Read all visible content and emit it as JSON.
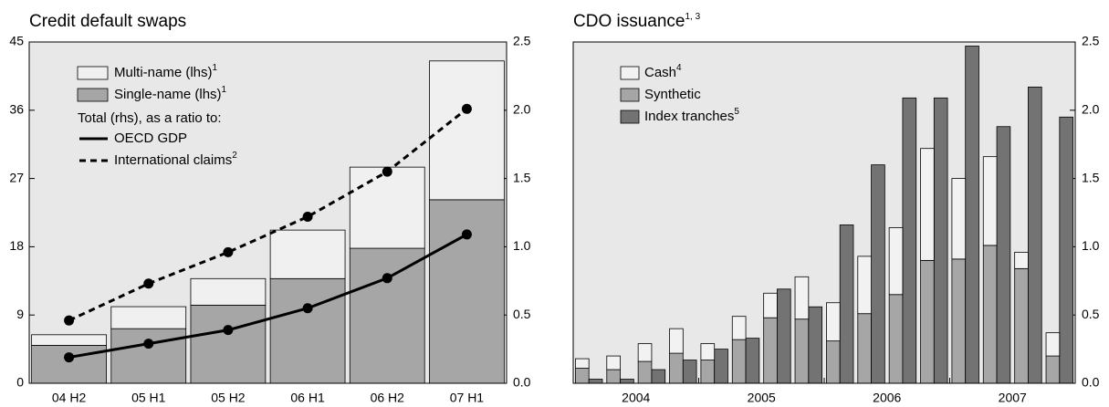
{
  "chart_data": [
    {
      "type": "bar",
      "title": "Credit default swaps",
      "categories": [
        "04 H2",
        "05 H1",
        "05 H2",
        "06 H1",
        "06 H2",
        "07 H1"
      ],
      "series": [
        {
          "name": "Multi-name (lhs)",
          "note": "1",
          "kind": "bar",
          "stacked": true,
          "color": "#f0f0f0",
          "values": [
            1.4,
            2.9,
            3.5,
            6.4,
            10.7,
            18.3
          ]
        },
        {
          "name": "Single-name (lhs)",
          "note": "1",
          "kind": "bar",
          "color": "#a6a6a6",
          "values": [
            5.0,
            7.2,
            10.3,
            13.8,
            17.8,
            24.2
          ]
        },
        {
          "name": "OECD GDP",
          "kind": "line",
          "dash": false,
          "axis": "y2",
          "color": "#000000",
          "values": [
            0.19,
            0.29,
            0.39,
            0.55,
            0.77,
            1.09
          ]
        },
        {
          "name": "International claims",
          "note": "2",
          "kind": "line",
          "dash": true,
          "axis": "y2",
          "color": "#000000",
          "values": [
            0.46,
            0.73,
            0.96,
            1.22,
            1.55,
            2.01
          ]
        }
      ],
      "legend_title": "Total (rhs), as a ratio to:",
      "ylim": [
        0,
        45
      ],
      "yticks": [
        0,
        9,
        18,
        27,
        36,
        45
      ],
      "y2lim": [
        0,
        2.5
      ],
      "y2ticks": [
        {
          "value": 0,
          "label": "0.0"
        },
        0.5,
        {
          "value": 1,
          "label": "1.0"
        },
        1.5,
        {
          "value": 2,
          "label": "2.0"
        },
        2.5
      ],
      "background": "#e8e8e8"
    },
    {
      "type": "bar",
      "title": "CDO issuance",
      "title_note": "1, 3",
      "categories": [
        null,
        null,
        null,
        null,
        null,
        null,
        null,
        null,
        null,
        null,
        null,
        null,
        null,
        null,
        null,
        null
      ],
      "group_labels": [
        "2004",
        "2005",
        "2006",
        "2007"
      ],
      "series": [
        {
          "name": "Cash",
          "note": "4",
          "kind": "bar",
          "stacked": true,
          "axis": "y2",
          "color": "#f2f2f2",
          "values": [
            0.07,
            0.1,
            0.13,
            0.18,
            0.12,
            0.17,
            0.18,
            0.31,
            0.28,
            0.42,
            0.49,
            0.82,
            0.59,
            0.65,
            0.12,
            0.17
          ]
        },
        {
          "name": "Synthetic",
          "kind": "bar",
          "axis": "y2",
          "color": "#a6a6a6",
          "values": [
            0.11,
            0.1,
            0.16,
            0.22,
            0.17,
            0.32,
            0.48,
            0.47,
            0.31,
            0.51,
            0.65,
            0.9,
            0.91,
            1.01,
            0.84,
            0.2
          ]
        },
        {
          "name": "Index tranches",
          "note": "5",
          "kind": "bar",
          "axis": "y2",
          "color": "#737373",
          "values": [
            0.03,
            0.03,
            0.1,
            0.17,
            0.25,
            0.33,
            0.69,
            0.56,
            1.16,
            1.6,
            2.09,
            2.09,
            2.47,
            1.88,
            2.17,
            1.95
          ]
        }
      ],
      "y2lim": [
        0,
        2.5
      ],
      "y2ticks": [
        {
          "value": 0,
          "label": "0.0"
        },
        0.5,
        {
          "value": 1,
          "label": "1.0"
        },
        1.5,
        {
          "value": 2,
          "label": "2.0"
        },
        2.5
      ],
      "background": "#e8e8e8"
    }
  ]
}
